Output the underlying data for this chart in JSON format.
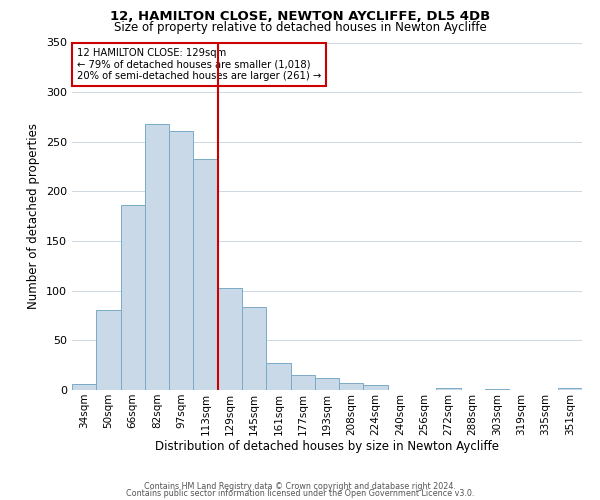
{
  "title": "12, HAMILTON CLOSE, NEWTON AYCLIFFE, DL5 4DB",
  "subtitle": "Size of property relative to detached houses in Newton Aycliffe",
  "xlabel": "Distribution of detached houses by size in Newton Aycliffe",
  "ylabel": "Number of detached properties",
  "bar_labels": [
    "34sqm",
    "50sqm",
    "66sqm",
    "82sqm",
    "97sqm",
    "113sqm",
    "129sqm",
    "145sqm",
    "161sqm",
    "177sqm",
    "193sqm",
    "208sqm",
    "224sqm",
    "240sqm",
    "256sqm",
    "272sqm",
    "288sqm",
    "303sqm",
    "319sqm",
    "335sqm",
    "351sqm"
  ],
  "bar_values": [
    6,
    81,
    186,
    268,
    261,
    233,
    103,
    84,
    27,
    15,
    12,
    7,
    5,
    0,
    0,
    2,
    0,
    1,
    0,
    0,
    2
  ],
  "bar_color": "#c9d9e8",
  "bar_edge_color": "#7aaac8",
  "marker_index": 6,
  "marker_color": "#cc0000",
  "annotation_title": "12 HAMILTON CLOSE: 129sqm",
  "annotation_line1": "← 79% of detached houses are smaller (1,018)",
  "annotation_line2": "20% of semi-detached houses are larger (261) →",
  "annotation_box_color": "#ffffff",
  "annotation_box_edge_color": "#cc0000",
  "ylim": [
    0,
    350
  ],
  "yticks": [
    0,
    50,
    100,
    150,
    200,
    250,
    300,
    350
  ],
  "footer_line1": "Contains HM Land Registry data © Crown copyright and database right 2024.",
  "footer_line2": "Contains public sector information licensed under the Open Government Licence v3.0.",
  "background_color": "#ffffff",
  "grid_color": "#ccd9e4"
}
